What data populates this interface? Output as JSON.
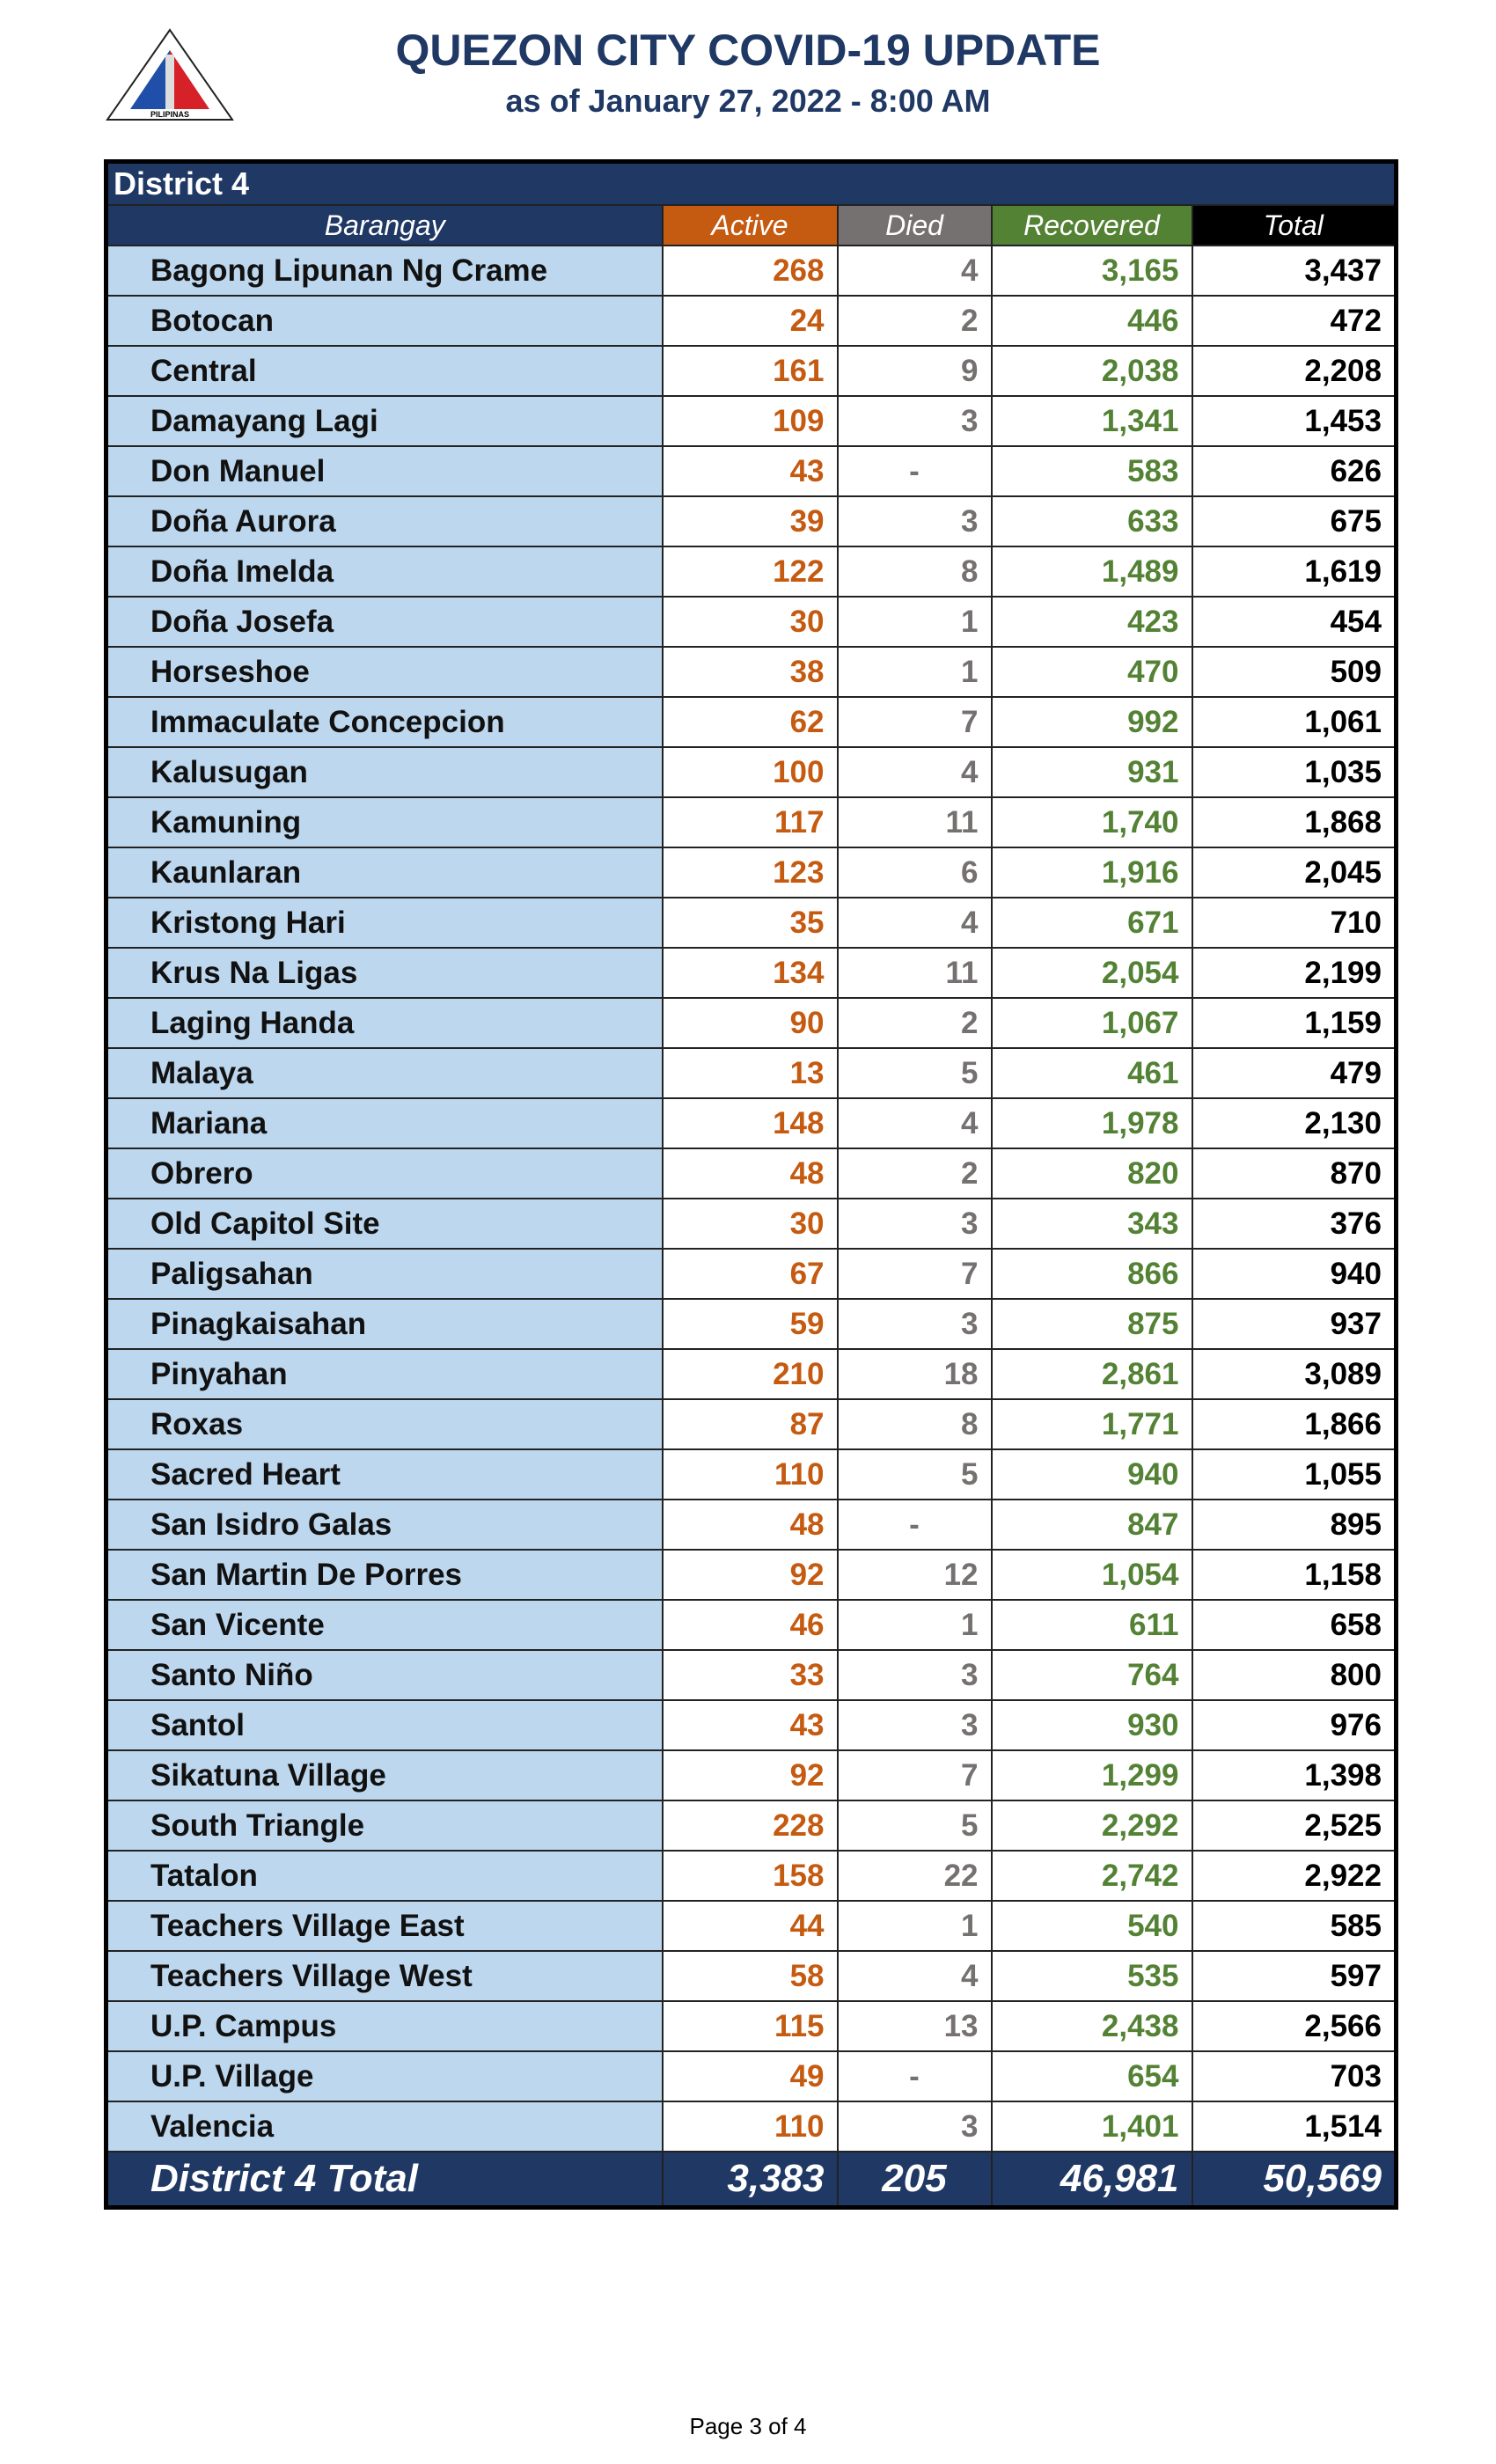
{
  "header": {
    "title": "QUEZON CITY COVID-19 UPDATE",
    "subtitle": "as of January 27, 2022 - 8:00 AM",
    "logo_text": [
      "LUNGSOD",
      "QUEZON",
      "PILIPINAS"
    ]
  },
  "colors": {
    "navy": "#1f3864",
    "active": "#c55a11",
    "died": "#767171",
    "recovered": "#548235",
    "barangay_bg": "#bdd7ee"
  },
  "table": {
    "district": "District 4",
    "columns": [
      "Barangay",
      "Active",
      "Died",
      "Recovered",
      "Total"
    ],
    "rows": [
      [
        "Bagong Lipunan Ng Crame",
        "268",
        "4",
        "3,165",
        "3,437"
      ],
      [
        "Botocan",
        "24",
        "2",
        "446",
        "472"
      ],
      [
        "Central",
        "161",
        "9",
        "2,038",
        "2,208"
      ],
      [
        "Damayang Lagi",
        "109",
        "3",
        "1,341",
        "1,453"
      ],
      [
        "Don Manuel",
        "43",
        "-",
        "583",
        "626"
      ],
      [
        "Doña Aurora",
        "39",
        "3",
        "633",
        "675"
      ],
      [
        "Doña Imelda",
        "122",
        "8",
        "1,489",
        "1,619"
      ],
      [
        "Doña Josefa",
        "30",
        "1",
        "423",
        "454"
      ],
      [
        "Horseshoe",
        "38",
        "1",
        "470",
        "509"
      ],
      [
        "Immaculate Concepcion",
        "62",
        "7",
        "992",
        "1,061"
      ],
      [
        "Kalusugan",
        "100",
        "4",
        "931",
        "1,035"
      ],
      [
        "Kamuning",
        "117",
        "11",
        "1,740",
        "1,868"
      ],
      [
        "Kaunlaran",
        "123",
        "6",
        "1,916",
        "2,045"
      ],
      [
        "Kristong Hari",
        "35",
        "4",
        "671",
        "710"
      ],
      [
        "Krus Na Ligas",
        "134",
        "11",
        "2,054",
        "2,199"
      ],
      [
        "Laging Handa",
        "90",
        "2",
        "1,067",
        "1,159"
      ],
      [
        "Malaya",
        "13",
        "5",
        "461",
        "479"
      ],
      [
        "Mariana",
        "148",
        "4",
        "1,978",
        "2,130"
      ],
      [
        "Obrero",
        "48",
        "2",
        "820",
        "870"
      ],
      [
        "Old Capitol Site",
        "30",
        "3",
        "343",
        "376"
      ],
      [
        "Paligsahan",
        "67",
        "7",
        "866",
        "940"
      ],
      [
        "Pinagkaisahan",
        "59",
        "3",
        "875",
        "937"
      ],
      [
        "Pinyahan",
        "210",
        "18",
        "2,861",
        "3,089"
      ],
      [
        "Roxas",
        "87",
        "8",
        "1,771",
        "1,866"
      ],
      [
        "Sacred Heart",
        "110",
        "5",
        "940",
        "1,055"
      ],
      [
        "San Isidro Galas",
        "48",
        "-",
        "847",
        "895"
      ],
      [
        "San Martin De Porres",
        "92",
        "12",
        "1,054",
        "1,158"
      ],
      [
        "San Vicente",
        "46",
        "1",
        "611",
        "658"
      ],
      [
        "Santo Niño",
        "33",
        "3",
        "764",
        "800"
      ],
      [
        "Santol",
        "43",
        "3",
        "930",
        "976"
      ],
      [
        "Sikatuna Village",
        "92",
        "7",
        "1,299",
        "1,398"
      ],
      [
        "South Triangle",
        "228",
        "5",
        "2,292",
        "2,525"
      ],
      [
        "Tatalon",
        "158",
        "22",
        "2,742",
        "2,922"
      ],
      [
        "Teachers Village East",
        "44",
        "1",
        "540",
        "585"
      ],
      [
        "Teachers Village West",
        "58",
        "4",
        "535",
        "597"
      ],
      [
        "U.P. Campus",
        "115",
        "13",
        "2,438",
        "2,566"
      ],
      [
        "U.P. Village",
        "49",
        "-",
        "654",
        "703"
      ],
      [
        "Valencia",
        "110",
        "3",
        "1,401",
        "1,514"
      ]
    ],
    "total": [
      "District 4 Total",
      "3,383",
      "205",
      "46,981",
      "50,569"
    ]
  },
  "footer": {
    "page": "Page 3 of 4"
  }
}
